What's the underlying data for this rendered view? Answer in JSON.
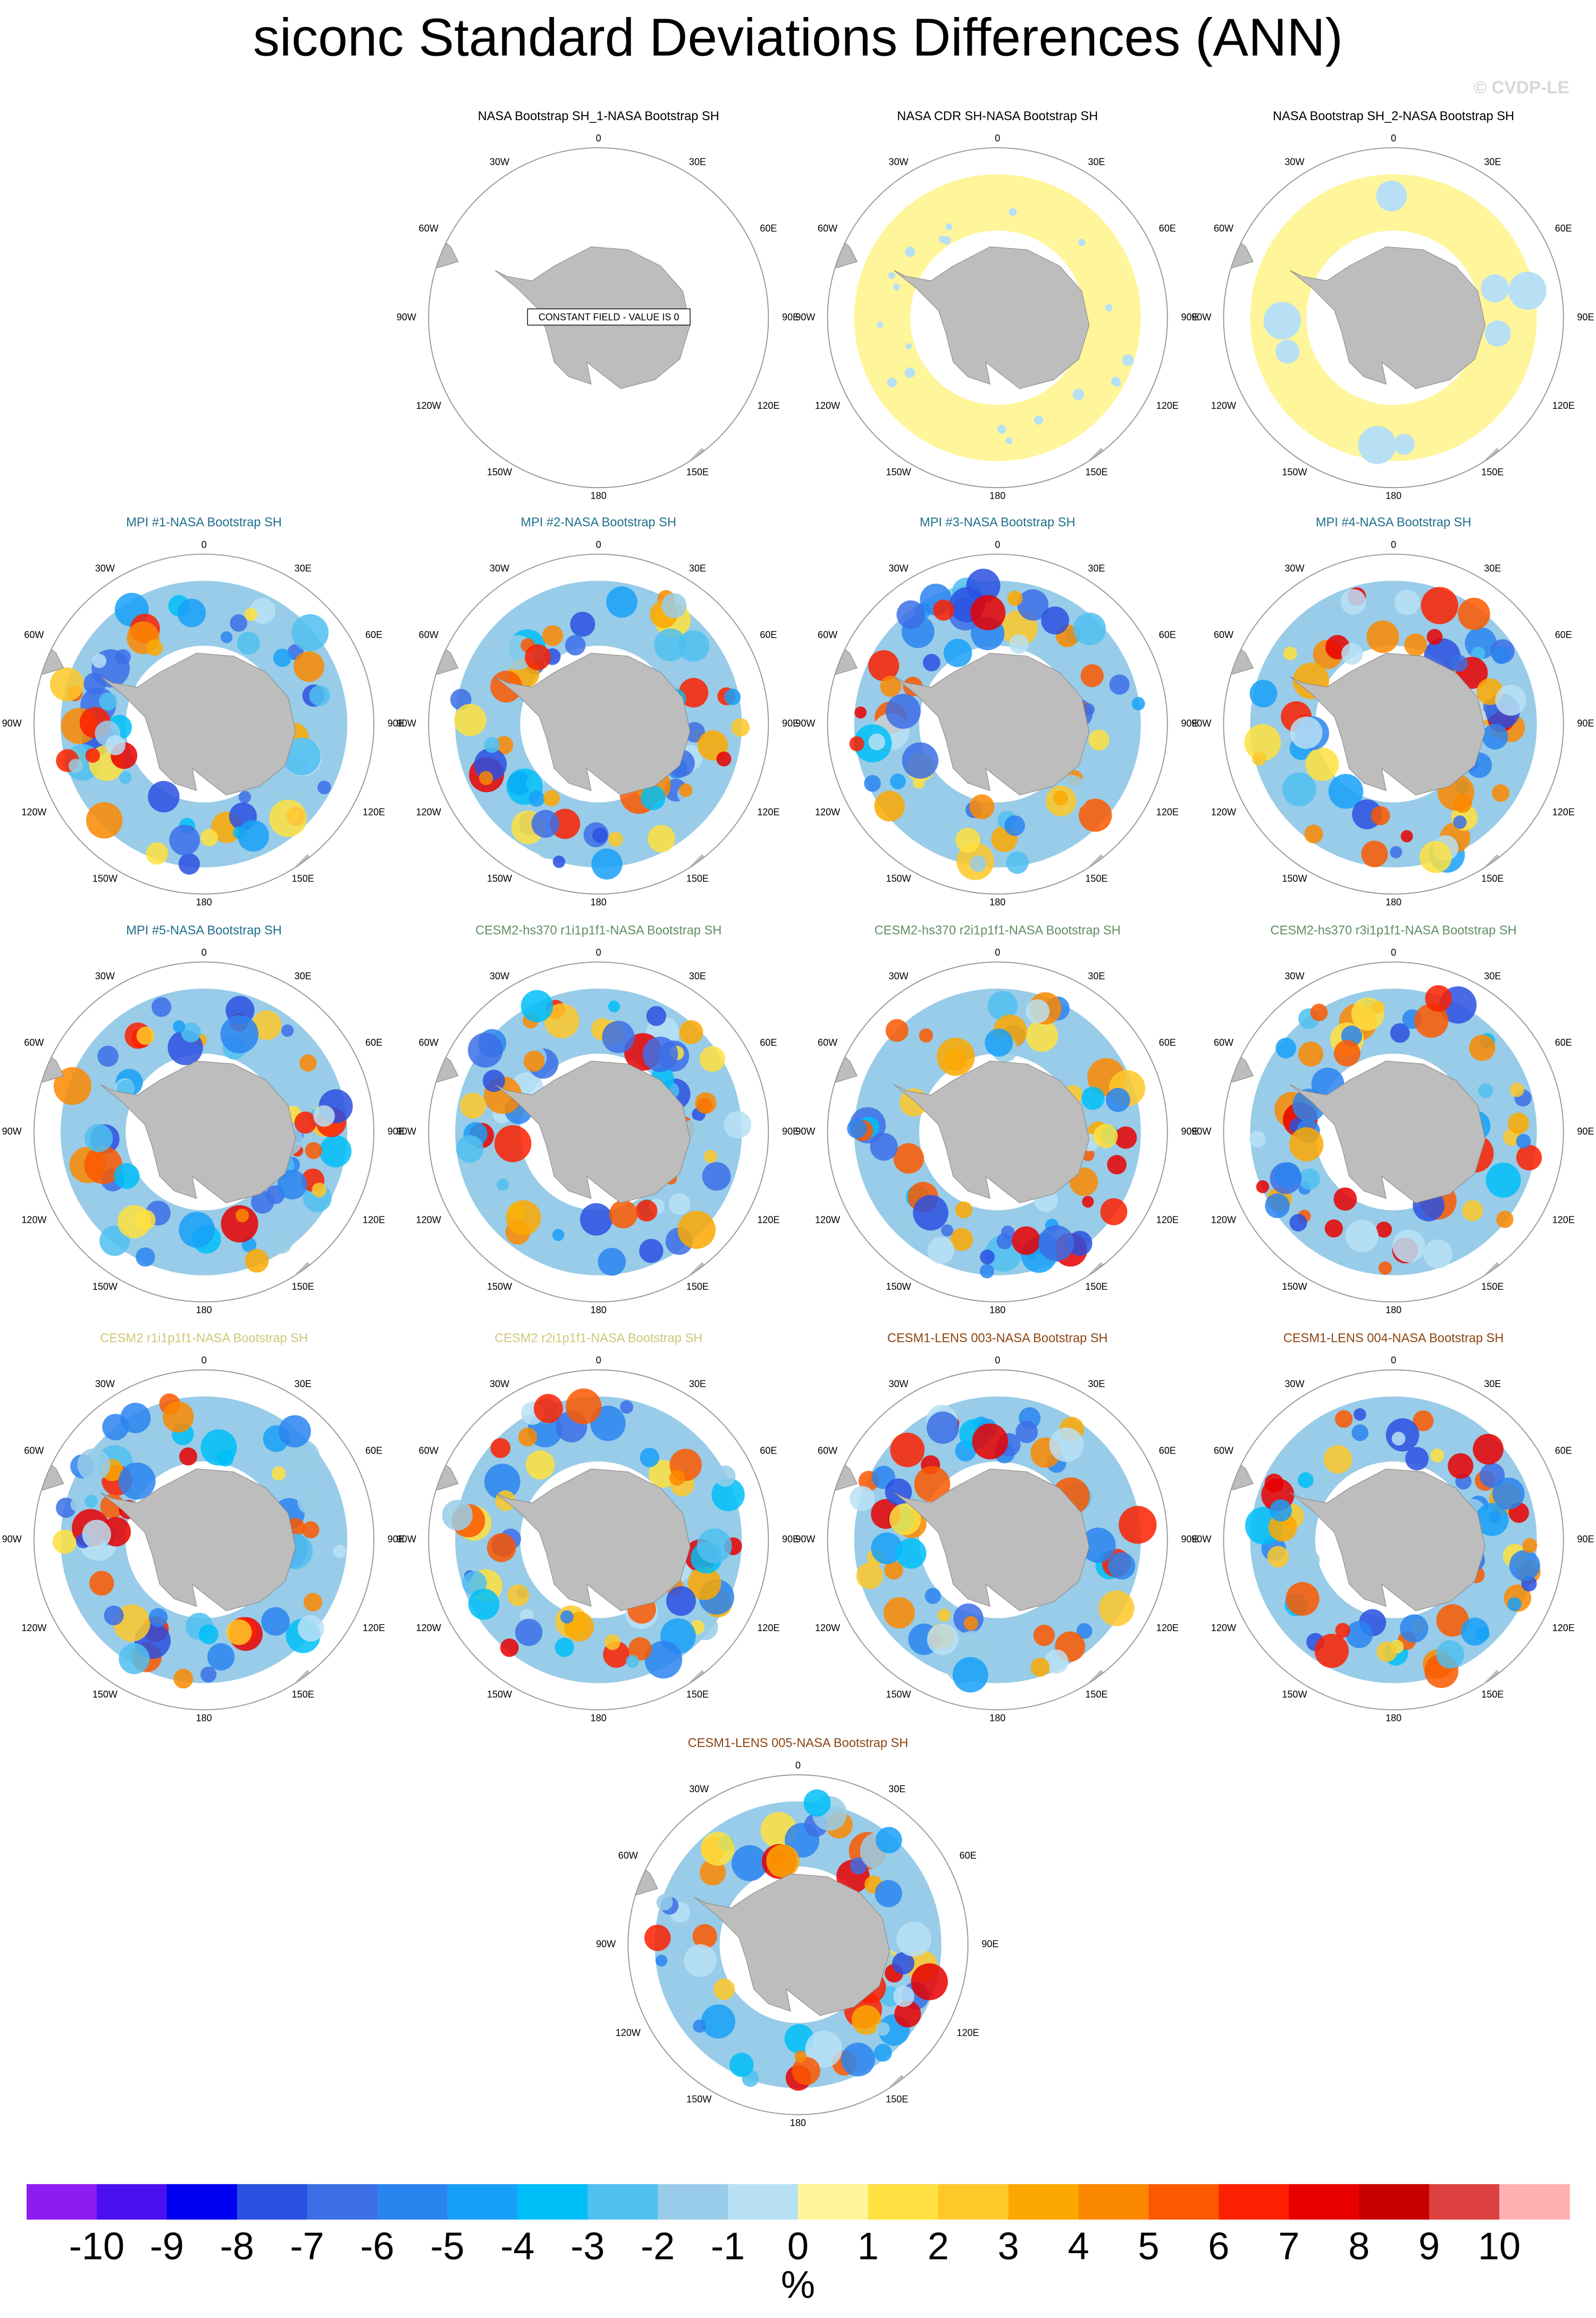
{
  "chart_data": {
    "type": "polar-map-panels",
    "title": "siconc Standard Deviations Differences (ANN)",
    "credit": "© CVDP-LE",
    "note": "CONSTANT FIELD - VALUE IS 0",
    "longitude_labels": [
      "0",
      "30E",
      "60E",
      "90E",
      "120E",
      "150E",
      "180",
      "150W",
      "120W",
      "90W",
      "60W",
      "30W"
    ],
    "land_color": "#bdbdbd",
    "panels": [
      {
        "title": "NASA Bootstrap SH_1-NASA Bootstrap SH",
        "color": "#000000"
      },
      {
        "title": "NASA CDR SH-NASA Bootstrap SH",
        "color": "#000000"
      },
      {
        "title": "NASA Bootstrap SH_2-NASA Bootstrap SH",
        "color": "#000000"
      },
      {
        "title": "MPI #1-NASA Bootstrap SH",
        "color": "#1f6e8c"
      },
      {
        "title": "MPI #2-NASA Bootstrap SH",
        "color": "#1f6e8c"
      },
      {
        "title": "MPI #3-NASA Bootstrap SH",
        "color": "#1f6e8c"
      },
      {
        "title": "MPI #4-NASA Bootstrap SH",
        "color": "#1f6e8c"
      },
      {
        "title": "MPI #5-NASA Bootstrap SH",
        "color": "#1f6e8c"
      },
      {
        "title": "CESM2-hs370 r1i1p1f1-NASA Bootstrap SH",
        "color": "#5f8f62"
      },
      {
        "title": "CESM2-hs370 r2i1p1f1-NASA Bootstrap SH",
        "color": "#5f8f62"
      },
      {
        "title": "CESM2-hs370 r3i1p1f1-NASA Bootstrap SH",
        "color": "#5f8f62"
      },
      {
        "title": "CESM2 r1i1p1f1-NASA Bootstrap SH",
        "color": "#cfc77a"
      },
      {
        "title": "CESM2 r2i1p1f1-NASA Bootstrap SH",
        "color": "#cfc77a"
      },
      {
        "title": "CESM1-LENS 003-NASA Bootstrap SH",
        "color": "#8b4513"
      },
      {
        "title": "CESM1-LENS 004-NASA Bootstrap SH",
        "color": "#8b4513"
      },
      {
        "title": "CESM1-LENS 005-NASA Bootstrap SH",
        "color": "#8b4513"
      }
    ],
    "colorbar": {
      "label": "%",
      "ticks": [
        -10,
        -9,
        -8,
        -7,
        -6,
        -5,
        -4,
        -3,
        -2,
        -1,
        0,
        1,
        2,
        3,
        4,
        5,
        6,
        7,
        8,
        9,
        10
      ],
      "colors": [
        "#8c1cf0",
        "#4a10f0",
        "#0000f0",
        "#2a50e0",
        "#3c6ee6",
        "#2a84f0",
        "#18a0f8",
        "#00bef8",
        "#50c0f0",
        "#98cce8",
        "#b8e0f4",
        "#fff59a",
        "#ffe040",
        "#fec828",
        "#fca800",
        "#fc8800",
        "#fc5800",
        "#fc2000",
        "#e80000",
        "#c80000",
        "#dc4040",
        "#ffb0b0"
      ]
    }
  }
}
